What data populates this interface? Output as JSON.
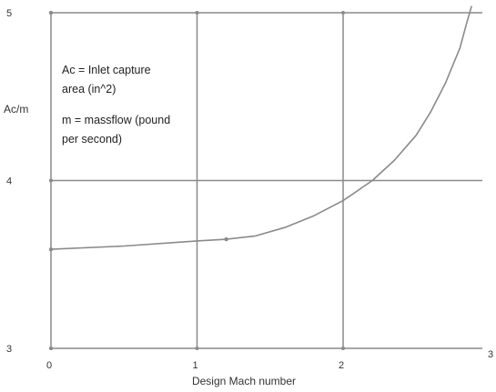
{
  "chart_data": {
    "type": "line",
    "title": "",
    "xlabel": "Design Mach number",
    "ylabel": "Ac/m",
    "xlim": [
      0,
      3
    ],
    "ylim": [
      3,
      5
    ],
    "x_ticks": [
      "0",
      "1",
      "2",
      "3"
    ],
    "y_ticks": [
      "3",
      "4",
      "5"
    ],
    "grid": true,
    "annotations": [
      "Ac = Inlet capture",
      "area (in^2)",
      "m = massflow (pound",
      "per second)"
    ],
    "series": [
      {
        "x": [
          0.0,
          0.5,
          1.0,
          1.2,
          1.4,
          1.6,
          1.8,
          2.0,
          2.2,
          2.35,
          2.5,
          2.6,
          2.7,
          2.8,
          2.85,
          2.88
        ],
        "y": [
          3.59,
          3.61,
          3.64,
          3.65,
          3.67,
          3.72,
          3.79,
          3.88,
          4.0,
          4.12,
          4.27,
          4.41,
          4.58,
          4.79,
          4.95,
          5.04
        ]
      }
    ],
    "markers": [
      {
        "x": 0.0,
        "y": 3.59
      },
      {
        "x": 1.2,
        "y": 3.65
      }
    ]
  }
}
